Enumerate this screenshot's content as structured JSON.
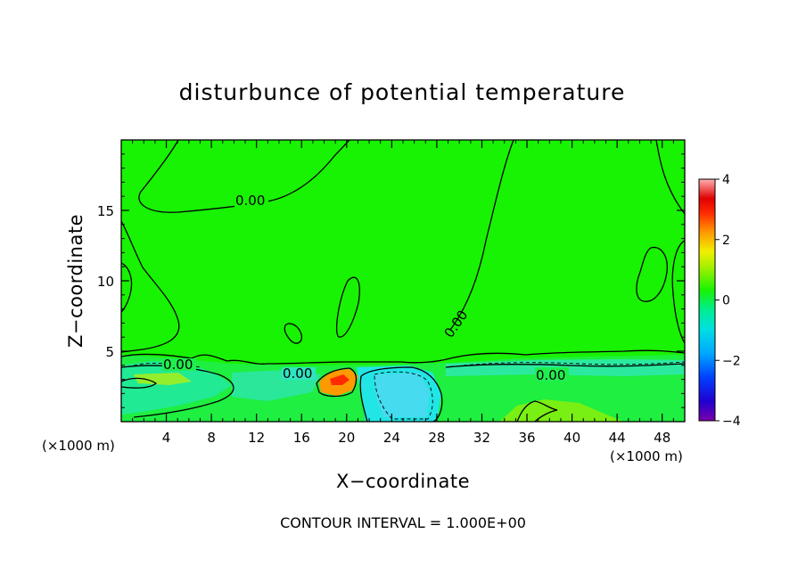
{
  "chart_data": {
    "type": "heatmap",
    "title": "disturbunce of potential temperature",
    "xlabel": "X−coordinate",
    "ylabel": "Z−coordinate",
    "x_unit_label": "(×1000 m)",
    "x_unit_label_right": "(×1000 m)",
    "xlim": [
      0,
      50
    ],
    "ylim": [
      0,
      20
    ],
    "x_ticks": [
      4,
      8,
      12,
      16,
      20,
      24,
      28,
      32,
      36,
      40,
      44,
      48
    ],
    "x_tick_labels": [
      "4",
      "8",
      "12",
      "16",
      "20",
      "24",
      "28",
      "32",
      "36",
      "40",
      "44",
      "48"
    ],
    "y_ticks": [
      5,
      10,
      15
    ],
    "y_tick_labels": [
      "5",
      "10",
      "15"
    ],
    "colorbar": {
      "range": [
        -4,
        4
      ],
      "ticks": [
        -4,
        -2,
        0,
        2,
        4
      ],
      "tick_labels": [
        "−4",
        "−2",
        "0",
        "2",
        "4"
      ]
    },
    "contour_labels": [
      {
        "text": "0.00",
        "x": 11.5,
        "z": 15.6
      },
      {
        "text": "0.00",
        "x": 5.0,
        "z": 4.1
      },
      {
        "text": "0.00",
        "x": 16.2,
        "z": 3.4
      },
      {
        "text": "0.00",
        "x": 30.0,
        "z": 6.9
      },
      {
        "text": "0.00",
        "x": 38.2,
        "z": 3.3
      }
    ],
    "contour_interval_note": "CONTOUR INTERVAL = 1.000E+00",
    "grid": false
  },
  "colors": {
    "background_field": "#18f203",
    "cool_anomaly": "#20e6e0",
    "warm_anomaly": "#ff9900",
    "contour": "#000000"
  }
}
